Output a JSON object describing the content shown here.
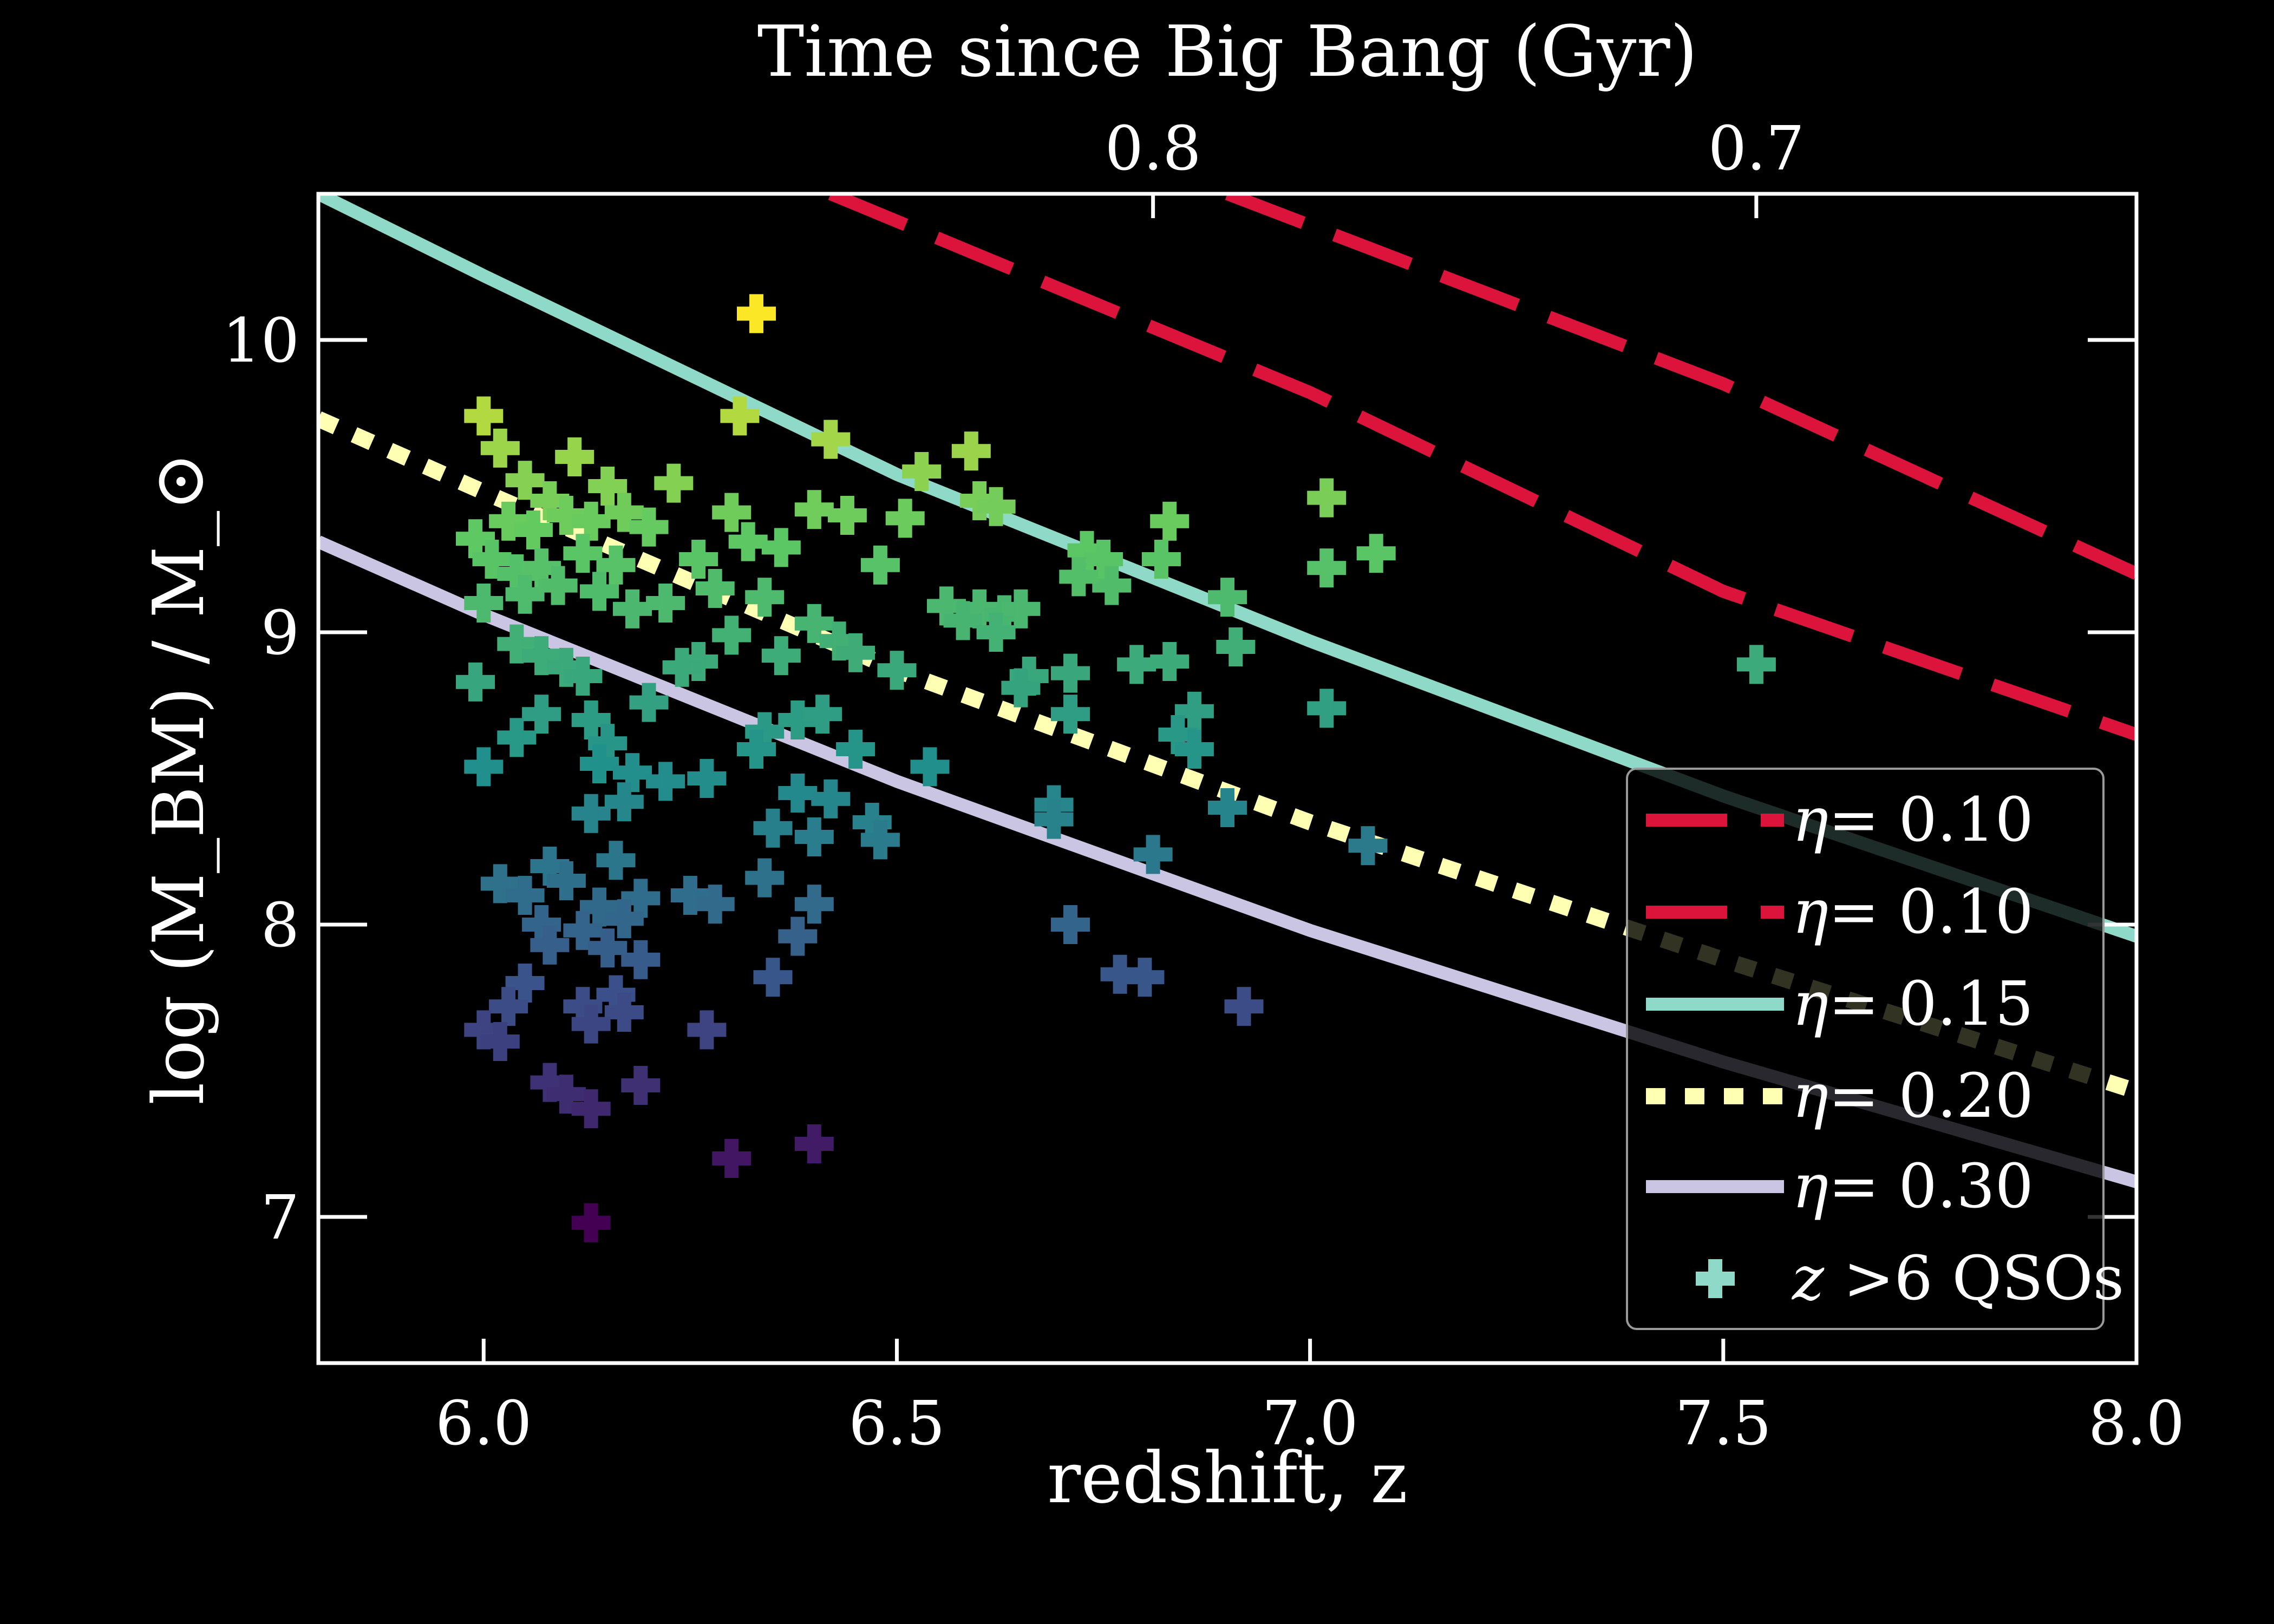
{
  "chart_data": {
    "type": "scatter",
    "background": "#000000",
    "xlabel": "redshift, z",
    "ylabel": "log (M_BM) / M_⊙",
    "top_axis_label": "Time since Big Bang (Gyr)",
    "xlim": [
      5.8,
      8.0
    ],
    "ylim": [
      6.5,
      10.5
    ],
    "x_ticks": [
      6.0,
      6.5,
      7.0,
      7.5,
      8.0
    ],
    "x_tick_labels": [
      "6.0",
      "6.5",
      "7.0",
      "7.5",
      "8.0"
    ],
    "y_ticks": [
      7,
      8,
      9,
      10
    ],
    "y_tick_labels": [
      "7",
      "8",
      "9",
      "10"
    ],
    "top_ticks": [
      {
        "label": "0.8",
        "z": 6.81
      },
      {
        "label": "0.7",
        "z": 7.54
      }
    ],
    "grid": false,
    "legend_position": "lower-right",
    "lines": [
      {
        "name": "η = 0.10",
        "eta_text": "η",
        "value_text": "= 0.10",
        "color": "#dc143c",
        "style": "dashed",
        "points": [
          [
            6.42,
            10.5
          ],
          [
            7.0,
            9.82
          ],
          [
            7.5,
            9.14
          ],
          [
            8.0,
            8.65
          ]
        ]
      },
      {
        "name": "η = 0.10",
        "eta_text": "η",
        "value_text": "= 0.10",
        "color": "#dc143c",
        "style": "dashed",
        "points": [
          [
            6.9,
            10.5
          ],
          [
            7.5,
            9.85
          ],
          [
            8.0,
            9.2
          ]
        ]
      },
      {
        "name": "η = 0.15",
        "eta_text": "η",
        "value_text": "= 0.15",
        "color": "#8fd9c8",
        "style": "solid",
        "points": [
          [
            5.8,
            10.5
          ],
          [
            6.0,
            10.22
          ],
          [
            6.5,
            9.54
          ],
          [
            7.0,
            8.97
          ],
          [
            7.5,
            8.44
          ],
          [
            8.0,
            7.96
          ]
        ]
      },
      {
        "name": "η = 0.20",
        "eta_text": "η",
        "value_text": "= 0.20",
        "color": "#ffffb3",
        "style": "dotted",
        "points": [
          [
            5.8,
            9.73
          ],
          [
            6.0,
            9.48
          ],
          [
            6.5,
            8.87
          ],
          [
            7.0,
            8.35
          ],
          [
            7.5,
            7.88
          ],
          [
            8.0,
            7.43
          ]
        ]
      },
      {
        "name": "η = 0.30",
        "eta_text": "η",
        "value_text": "= 0.30",
        "color": "#c9c5e3",
        "style": "solid",
        "points": [
          [
            5.8,
            9.31
          ],
          [
            6.0,
            9.06
          ],
          [
            6.5,
            8.49
          ],
          [
            7.0,
            7.98
          ],
          [
            7.5,
            7.53
          ],
          [
            8.0,
            7.12
          ]
        ]
      }
    ],
    "scatter_series": {
      "name": "z >6 QSOs",
      "z_text": "z",
      "label_rest": ">6 QSOs",
      "marker": "plus",
      "legend_color": "#8fd9c8",
      "colormap": "viridis",
      "color_range": [
        7.0,
        10.1
      ],
      "points": [
        [
          6.33,
          10.09
        ],
        [
          6.0,
          9.74
        ],
        [
          6.31,
          9.74
        ],
        [
          6.42,
          9.66
        ],
        [
          6.59,
          9.62
        ],
        [
          6.53,
          9.55
        ],
        [
          6.02,
          9.63
        ],
        [
          6.11,
          9.6
        ],
        [
          6.05,
          9.52
        ],
        [
          6.15,
          9.5
        ],
        [
          6.23,
          9.51
        ],
        [
          6.08,
          9.45
        ],
        [
          5.99,
          9.32
        ],
        [
          6.03,
          9.38
        ],
        [
          6.06,
          9.35
        ],
        [
          6.1,
          9.4
        ],
        [
          6.13,
          9.38
        ],
        [
          6.17,
          9.41
        ],
        [
          6.2,
          9.36
        ],
        [
          6.3,
          9.41
        ],
        [
          6.4,
          9.42
        ],
        [
          6.44,
          9.4
        ],
        [
          6.51,
          9.39
        ],
        [
          6.6,
          9.45
        ],
        [
          6.62,
          9.43
        ],
        [
          6.83,
          9.38
        ],
        [
          7.02,
          9.46
        ],
        [
          6.01,
          9.25
        ],
        [
          6.04,
          9.2
        ],
        [
          6.07,
          9.22
        ],
        [
          6.12,
          9.27
        ],
        [
          6.16,
          9.23
        ],
        [
          6.26,
          9.25
        ],
        [
          6.32,
          9.31
        ],
        [
          6.36,
          9.29
        ],
        [
          6.48,
          9.23
        ],
        [
          6.73,
          9.28
        ],
        [
          6.75,
          9.25
        ],
        [
          6.82,
          9.25
        ],
        [
          7.08,
          9.27
        ],
        [
          7.02,
          9.22
        ],
        [
          6.0,
          9.1
        ],
        [
          6.05,
          9.13
        ],
        [
          6.09,
          9.16
        ],
        [
          6.14,
          9.14
        ],
        [
          6.18,
          9.08
        ],
        [
          6.22,
          9.1
        ],
        [
          6.28,
          9.15
        ],
        [
          6.34,
          9.12
        ],
        [
          6.76,
          9.16
        ],
        [
          6.72,
          9.19
        ],
        [
          6.9,
          9.12
        ],
        [
          6.56,
          9.09
        ],
        [
          6.6,
          9.08
        ],
        [
          6.63,
          9.06
        ],
        [
          6.65,
          9.08
        ],
        [
          6.58,
          9.04
        ],
        [
          6.62,
          9.0
        ],
        [
          6.4,
          9.03
        ],
        [
          6.43,
          8.97
        ],
        [
          6.3,
          8.99
        ],
        [
          6.36,
          8.92
        ],
        [
          6.45,
          8.93
        ],
        [
          6.04,
          8.96
        ],
        [
          6.07,
          8.92
        ],
        [
          6.1,
          8.88
        ],
        [
          6.12,
          8.85
        ],
        [
          6.26,
          8.9
        ],
        [
          6.91,
          8.95
        ],
        [
          6.79,
          8.89
        ],
        [
          6.83,
          8.9
        ],
        [
          6.5,
          8.87
        ],
        [
          5.99,
          8.83
        ],
        [
          6.66,
          8.85
        ],
        [
          6.71,
          8.86
        ],
        [
          6.65,
          8.81
        ],
        [
          6.24,
          8.88
        ],
        [
          7.54,
          8.89
        ],
        [
          6.2,
          8.76
        ],
        [
          6.07,
          8.72
        ],
        [
          6.13,
          8.7
        ],
        [
          6.86,
          8.73
        ],
        [
          7.02,
          8.74
        ],
        [
          6.71,
          8.72
        ],
        [
          6.34,
          8.66
        ],
        [
          6.38,
          8.7
        ],
        [
          6.41,
          8.72
        ],
        [
          6.04,
          8.64
        ],
        [
          6.15,
          8.62
        ],
        [
          6.84,
          8.65
        ],
        [
          6.86,
          8.6
        ],
        [
          6.33,
          8.6
        ],
        [
          6.45,
          8.6
        ],
        [
          6.0,
          8.54
        ],
        [
          6.14,
          8.55
        ],
        [
          6.18,
          8.52
        ],
        [
          6.22,
          8.49
        ],
        [
          6.27,
          8.5
        ],
        [
          6.54,
          8.54
        ],
        [
          6.38,
          8.45
        ],
        [
          6.42,
          8.43
        ],
        [
          6.69,
          8.41
        ],
        [
          6.69,
          8.36
        ],
        [
          6.9,
          8.4
        ],
        [
          6.13,
          8.38
        ],
        [
          6.17,
          8.42
        ],
        [
          6.35,
          8.33
        ],
        [
          6.4,
          8.3
        ],
        [
          6.47,
          8.35
        ],
        [
          6.48,
          8.29
        ],
        [
          7.07,
          8.27
        ],
        [
          6.81,
          8.24
        ],
        [
          6.08,
          8.2
        ],
        [
          6.16,
          8.22
        ],
        [
          6.02,
          8.14
        ],
        [
          6.1,
          8.15
        ],
        [
          6.34,
          8.16
        ],
        [
          6.05,
          8.1
        ],
        [
          6.14,
          8.06
        ],
        [
          6.19,
          8.09
        ],
        [
          6.25,
          8.1
        ],
        [
          6.28,
          8.07
        ],
        [
          6.4,
          8.07
        ],
        [
          6.07,
          8.0
        ],
        [
          6.12,
          7.98
        ],
        [
          6.17,
          8.02
        ],
        [
          6.71,
          8.0
        ],
        [
          6.38,
          7.96
        ],
        [
          6.08,
          7.93
        ],
        [
          6.19,
          7.88
        ],
        [
          6.15,
          7.92
        ],
        [
          6.35,
          7.82
        ],
        [
          6.77,
          7.83
        ],
        [
          6.8,
          7.82
        ],
        [
          6.05,
          7.8
        ],
        [
          6.16,
          7.76
        ],
        [
          6.03,
          7.72
        ],
        [
          6.12,
          7.72
        ],
        [
          6.17,
          7.7
        ],
        [
          6.92,
          7.72
        ],
        [
          6.0,
          7.64
        ],
        [
          6.02,
          7.6
        ],
        [
          6.13,
          7.66
        ],
        [
          6.27,
          7.64
        ],
        [
          6.08,
          7.46
        ],
        [
          6.1,
          7.42
        ],
        [
          6.19,
          7.45
        ],
        [
          6.13,
          7.37
        ],
        [
          6.3,
          7.2
        ],
        [
          6.4,
          7.25
        ],
        [
          6.13,
          6.98
        ]
      ]
    }
  }
}
